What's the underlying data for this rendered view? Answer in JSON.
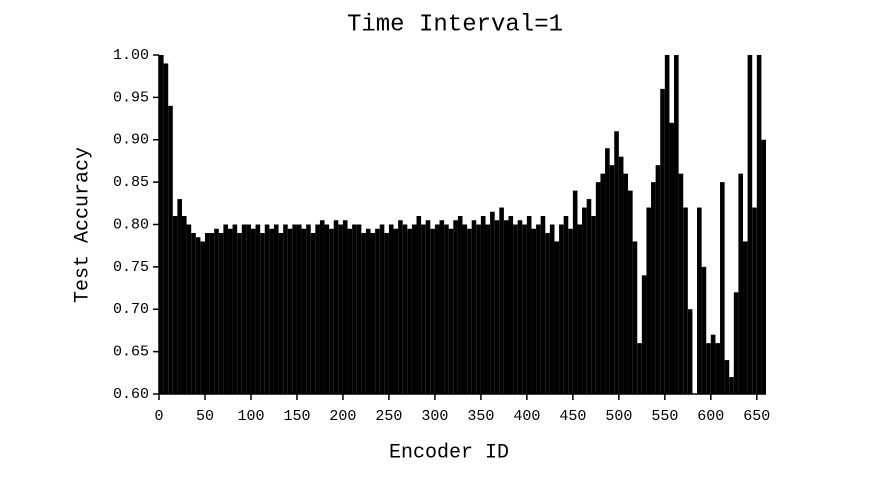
{
  "chart_data": {
    "type": "bar",
    "title": "Time Interval=1",
    "x_label": "Encoder ID",
    "y_label": "Test Accuracy",
    "color": "#000000",
    "x": [
      0,
      5,
      10,
      15,
      20,
      25,
      30,
      35,
      40,
      45,
      50,
      55,
      60,
      65,
      70,
      75,
      80,
      85,
      90,
      95,
      100,
      105,
      110,
      115,
      120,
      125,
      130,
      135,
      140,
      145,
      150,
      155,
      160,
      165,
      170,
      175,
      180,
      185,
      190,
      195,
      200,
      205,
      210,
      215,
      220,
      225,
      230,
      235,
      240,
      245,
      250,
      255,
      260,
      265,
      270,
      275,
      280,
      285,
      290,
      295,
      300,
      305,
      310,
      315,
      320,
      325,
      330,
      335,
      340,
      345,
      350,
      355,
      360,
      365,
      370,
      375,
      380,
      385,
      390,
      395,
      400,
      405,
      410,
      415,
      420,
      425,
      430,
      435,
      440,
      445,
      450,
      455,
      460,
      465,
      470,
      475,
      480,
      485,
      490,
      495,
      500,
      505,
      510,
      515,
      520,
      525,
      530,
      535,
      540,
      545,
      550,
      555,
      560,
      565,
      570,
      575,
      580,
      585,
      590,
      595,
      600,
      605,
      610,
      615,
      620,
      625,
      630,
      635,
      640,
      645,
      650,
      655
    ],
    "values": [
      1.0,
      0.99,
      0.94,
      0.81,
      0.83,
      0.81,
      0.8,
      0.79,
      0.785,
      0.78,
      0.79,
      0.79,
      0.795,
      0.79,
      0.8,
      0.795,
      0.8,
      0.79,
      0.8,
      0.8,
      0.795,
      0.8,
      0.79,
      0.8,
      0.795,
      0.8,
      0.79,
      0.8,
      0.795,
      0.8,
      0.8,
      0.795,
      0.8,
      0.79,
      0.8,
      0.805,
      0.8,
      0.795,
      0.805,
      0.8,
      0.805,
      0.795,
      0.8,
      0.8,
      0.79,
      0.795,
      0.79,
      0.795,
      0.8,
      0.79,
      0.8,
      0.795,
      0.805,
      0.8,
      0.795,
      0.8,
      0.81,
      0.8,
      0.805,
      0.795,
      0.8,
      0.805,
      0.8,
      0.795,
      0.805,
      0.81,
      0.8,
      0.795,
      0.805,
      0.8,
      0.81,
      0.8,
      0.815,
      0.805,
      0.82,
      0.805,
      0.81,
      0.8,
      0.805,
      0.8,
      0.81,
      0.795,
      0.8,
      0.81,
      0.79,
      0.8,
      0.78,
      0.8,
      0.81,
      0.795,
      0.84,
      0.8,
      0.82,
      0.83,
      0.81,
      0.85,
      0.86,
      0.89,
      0.87,
      0.91,
      0.88,
      0.86,
      0.84,
      0.78,
      0.66,
      0.74,
      0.82,
      0.85,
      0.87,
      0.96,
      1.0,
      0.92,
      1.0,
      0.86,
      0.82,
      0.7,
      0.6,
      0.82,
      0.75,
      0.66,
      0.67,
      0.66,
      0.85,
      0.64,
      0.62,
      0.72,
      0.86,
      0.78,
      1.0,
      0.82,
      1.0,
      0.9
    ],
    "xlim": [
      0,
      660
    ],
    "xticks": [
      0,
      50,
      100,
      150,
      200,
      250,
      300,
      350,
      400,
      450,
      500,
      550,
      600,
      650
    ],
    "ylim": [
      0.6,
      1.0
    ],
    "yticks": [
      {
        "value": 0.6,
        "label": "0.60"
      },
      0.65,
      {
        "value": 0.7,
        "label": "0.70"
      },
      0.75,
      {
        "value": 0.8,
        "label": "0.80"
      },
      0.85,
      {
        "value": 0.9,
        "label": "0.90"
      },
      0.95,
      {
        "value": 1.0,
        "label": "1.00"
      }
    ]
  }
}
